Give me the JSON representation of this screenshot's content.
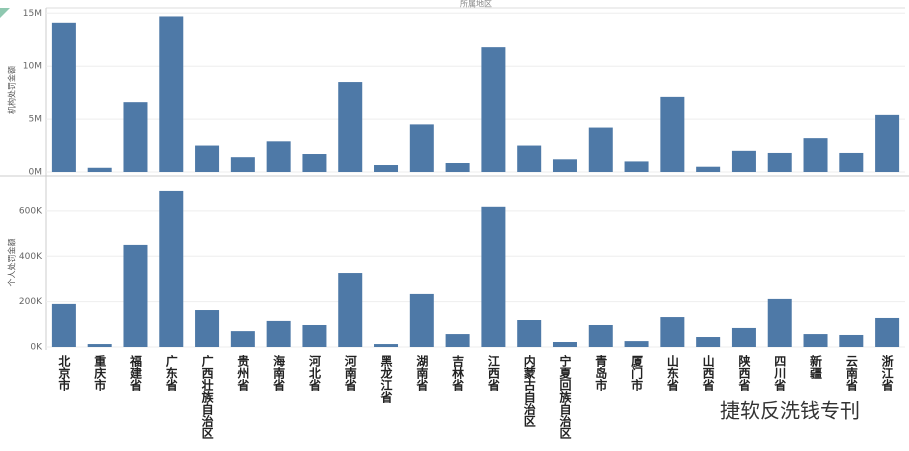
{
  "watermark": "捷软反洗钱专刊",
  "chart_data": [
    {
      "type": "bar",
      "title": "所属地区",
      "y_label": "机构处罚金额",
      "color": "#4e79a7",
      "ylim": [
        0,
        15500000
      ],
      "yticks": [
        {
          "value": 0,
          "label": "0M"
        },
        {
          "value": 5000000,
          "label": "5M"
        },
        {
          "value": 10000000,
          "label": "10M"
        },
        {
          "value": 15000000,
          "label": "15M"
        }
      ],
      "grid": true,
      "values": [
        14100000,
        400000,
        6600000,
        14700000,
        2500000,
        1400000,
        2900000,
        1700000,
        8500000,
        660000,
        4500000,
        850000,
        11800000,
        2500000,
        1200000,
        4200000,
        1000000,
        7100000,
        500000,
        2000000,
        1800000,
        3200000,
        1800000,
        5400000
      ]
    },
    {
      "type": "bar",
      "y_label": "个人处罚金额",
      "color": "#4e79a7",
      "ylim": [
        0,
        745000
      ],
      "yticks": [
        {
          "value": 0,
          "label": "0K"
        },
        {
          "value": 200000,
          "label": "200K"
        },
        {
          "value": 400000,
          "label": "400K"
        },
        {
          "value": 600000,
          "label": "600K"
        }
      ],
      "grid": true,
      "categories": [
        "北京市",
        "重庆市",
        "福建省",
        "广东省",
        "广西壮族自治区",
        "贵州省",
        "海南省",
        "河北省",
        "河南省",
        "黑龙江省",
        "湖南省",
        "吉林省",
        "江西省",
        "内蒙古自治区",
        "宁夏回族自治区",
        "青岛市",
        "厦门市",
        "山东省",
        "山西省",
        "陕西省",
        "四川省",
        "新疆",
        "云南省",
        "浙江省"
      ],
      "values": [
        190000,
        13000,
        450000,
        688000,
        163000,
        70000,
        115000,
        97000,
        326000,
        13000,
        234000,
        57000,
        618000,
        119000,
        22000,
        97000,
        26000,
        132000,
        44000,
        84000,
        212000,
        57000,
        53000,
        128000
      ]
    }
  ]
}
